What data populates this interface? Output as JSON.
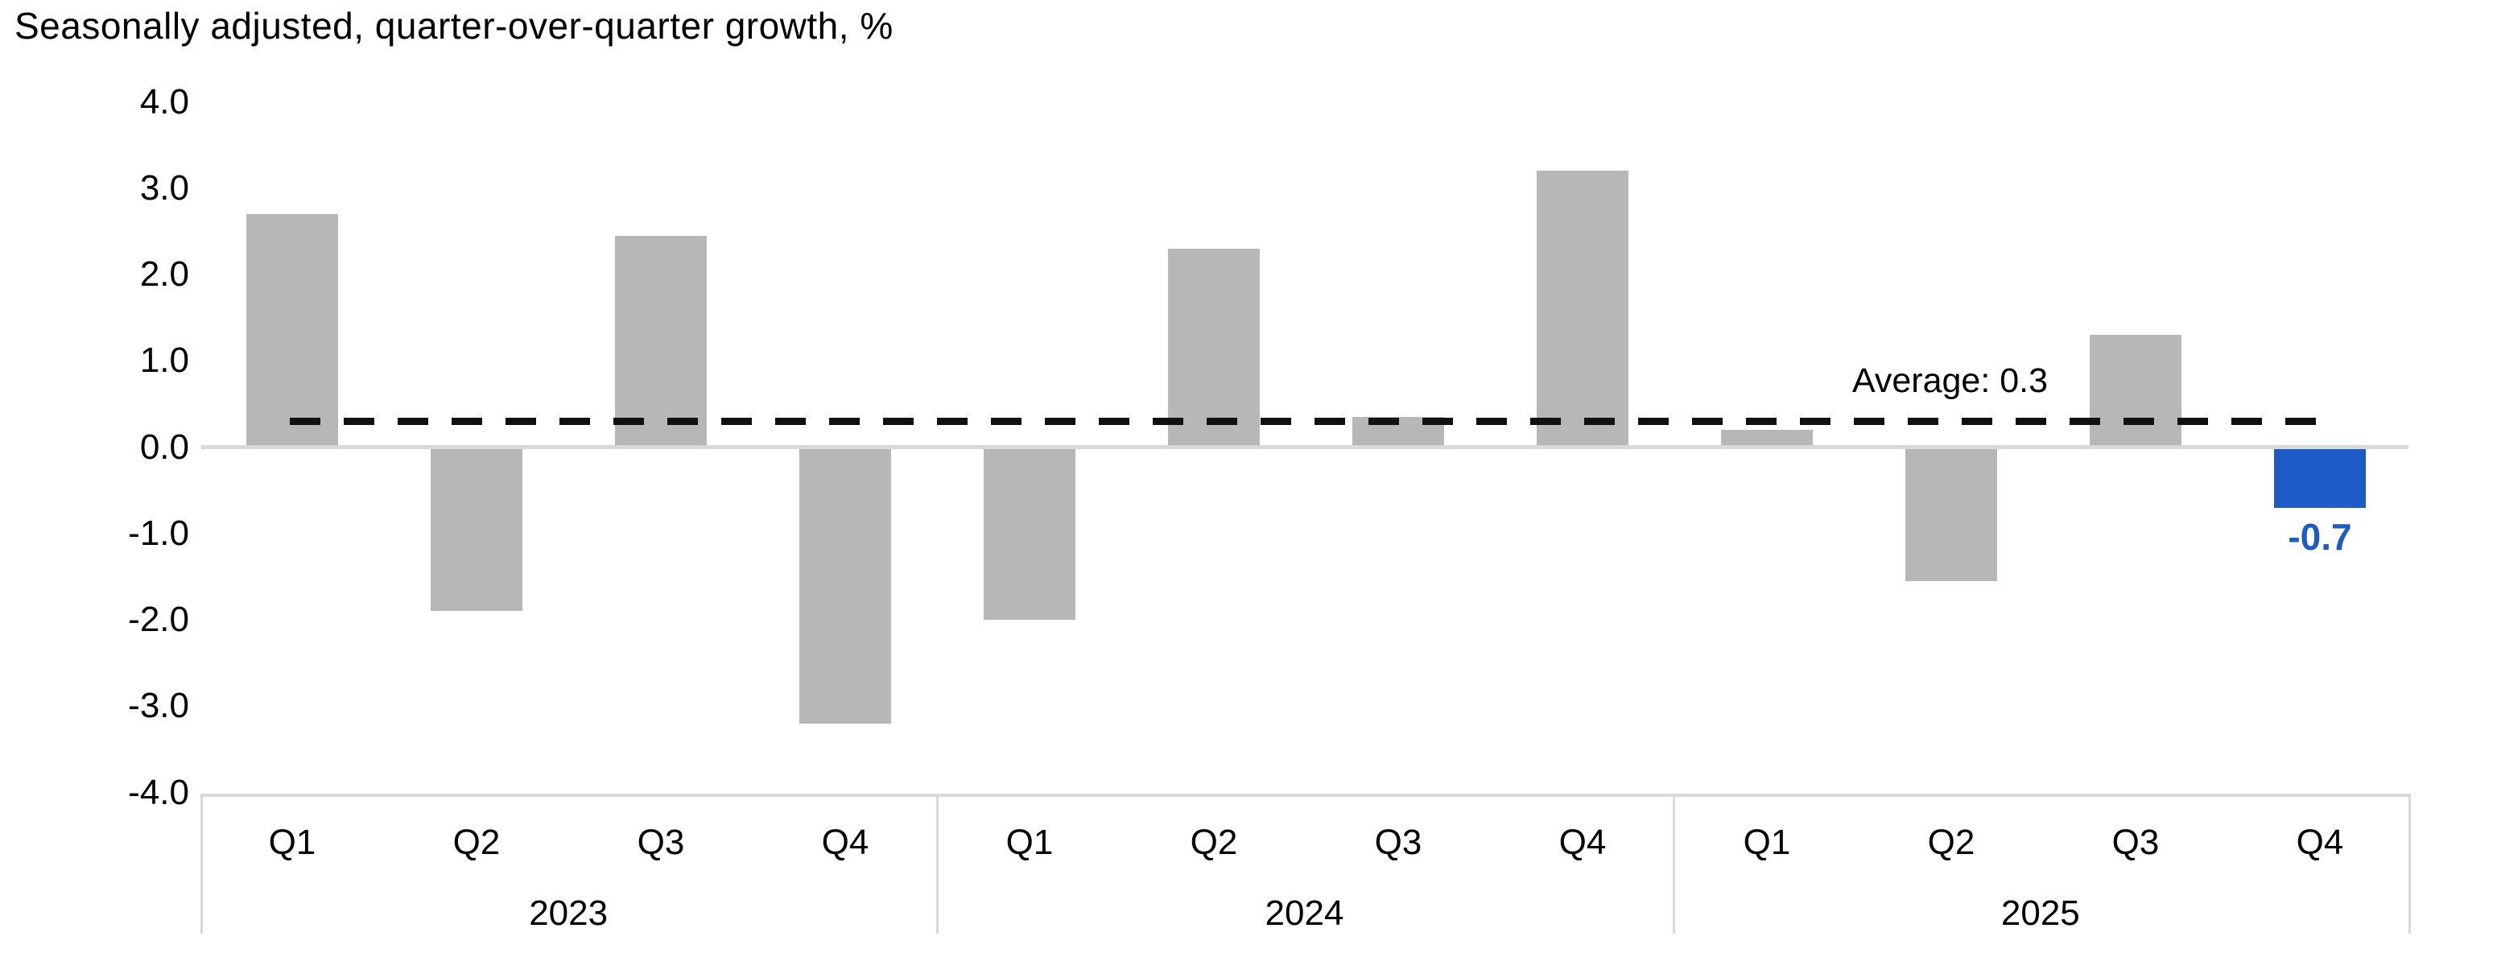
{
  "title": "Seasonally adjusted, quarter-over-quarter growth, %",
  "chart_data": {
    "type": "bar",
    "title": "Seasonally adjusted, quarter-over-quarter growth, %",
    "unit": "%",
    "year_groups": [
      {
        "year": "2023",
        "quarters": [
          "Q1",
          "Q2",
          "Q3",
          "Q4"
        ]
      },
      {
        "year": "2024",
        "quarters": [
          "Q1",
          "Q2",
          "Q3",
          "Q4"
        ]
      },
      {
        "year": "2025",
        "quarters": [
          "Q1",
          "Q2",
          "Q3",
          "Q4"
        ]
      }
    ],
    "categories": [
      "2023 Q1",
      "2023 Q2",
      "2023 Q3",
      "2023 Q4",
      "2024 Q1",
      "2024 Q2",
      "2024 Q3",
      "2024 Q4",
      "2025 Q1",
      "2025 Q2",
      "2025 Q3",
      "2025 Q4"
    ],
    "values": [
      2.7,
      -1.9,
      2.45,
      -3.2,
      -2.0,
      2.3,
      0.35,
      3.2,
      0.2,
      -1.55,
      1.3,
      -0.7
    ],
    "highlight": {
      "index": 11,
      "label": "-0.7"
    },
    "average": {
      "value": 0.3,
      "label": "Average: 0.3"
    },
    "ylim": [
      -4.0,
      4.0
    ],
    "ytick_labels": [
      "4.0",
      "3.0",
      "2.0",
      "1.0",
      "0.0",
      "-1.0",
      "-2.0",
      "-3.0",
      "-4.0"
    ],
    "grid": false,
    "legend": "none",
    "colors": {
      "bar": "#b7b7b7",
      "highlight_bar": "#1e5ac8",
      "highlight_text": "#1e5ac8",
      "axis": "#d9d9d9",
      "average_line": "#111111",
      "text": "#000000"
    }
  }
}
